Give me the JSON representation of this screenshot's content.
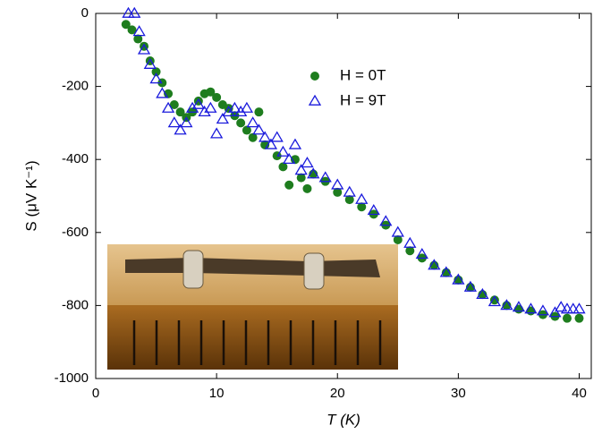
{
  "chart_data": {
    "type": "scatter",
    "x_label": "T (K)",
    "y_label": "S (μV K⁻¹)",
    "xlim": [
      0,
      41
    ],
    "xticks": [
      0,
      10,
      20,
      30,
      40
    ],
    "ylim": [
      -1000,
      0
    ],
    "yticks": [
      0,
      -200,
      -400,
      -600,
      -800,
      -1000
    ],
    "series": [
      {
        "name": "H = 0T",
        "color": "#1e7d1e",
        "marker": "circle",
        "x": [
          2.5,
          3,
          3.5,
          4,
          4.5,
          5,
          5.5,
          6,
          6.5,
          7,
          7.5,
          8,
          8.5,
          9,
          9.5,
          10,
          10.5,
          11,
          11.5,
          12,
          12.5,
          13,
          13.5,
          14,
          15,
          15.5,
          16,
          16.5,
          17,
          17.5,
          18,
          19,
          20,
          21,
          22,
          23,
          24,
          25,
          26,
          27,
          28,
          29,
          30,
          31,
          32,
          33,
          34,
          35,
          36,
          37,
          38,
          39,
          40
        ],
        "values": [
          -30,
          -45,
          -70,
          -90,
          -130,
          -160,
          -190,
          -220,
          -250,
          -270,
          -285,
          -270,
          -240,
          -220,
          -215,
          -230,
          -250,
          -260,
          -280,
          -300,
          -320,
          -340,
          -270,
          -360,
          -390,
          -420,
          -470,
          -400,
          -450,
          -480,
          -440,
          -460,
          -490,
          -510,
          -530,
          -550,
          -580,
          -620,
          -650,
          -670,
          -690,
          -710,
          -730,
          -750,
          -770,
          -785,
          -800,
          -810,
          -815,
          -825,
          -830,
          -835,
          -835
        ]
      },
      {
        "name": "H = 9T",
        "color": "#1a1adc",
        "marker": "triangle",
        "x": [
          2.7,
          3.2,
          3.6,
          4,
          4.5,
          5,
          5.5,
          6,
          6.5,
          7,
          7.5,
          8,
          8.5,
          9,
          9.5,
          10,
          10.5,
          11,
          11.5,
          12,
          12.5,
          13,
          13.5,
          14,
          14.5,
          15,
          15.5,
          16,
          16.5,
          17,
          17.5,
          18,
          19,
          20,
          21,
          22,
          23,
          24,
          25,
          26,
          27,
          28,
          29,
          30,
          31,
          32,
          33,
          34,
          35,
          36,
          37,
          38,
          38.5,
          39,
          39.5,
          40
        ],
        "values": [
          0,
          0,
          -50,
          -100,
          -140,
          -180,
          -220,
          -260,
          -300,
          -320,
          -300,
          -260,
          -250,
          -270,
          -260,
          -330,
          -290,
          -270,
          -260,
          -270,
          -260,
          -300,
          -320,
          -340,
          -360,
          -340,
          -380,
          -400,
          -360,
          -430,
          -410,
          -440,
          -450,
          -470,
          -490,
          -510,
          -540,
          -570,
          -600,
          -630,
          -660,
          -690,
          -710,
          -730,
          -750,
          -770,
          -790,
          -800,
          -805,
          -810,
          -815,
          -820,
          -805,
          -810,
          -810,
          -810
        ]
      }
    ]
  }
}
